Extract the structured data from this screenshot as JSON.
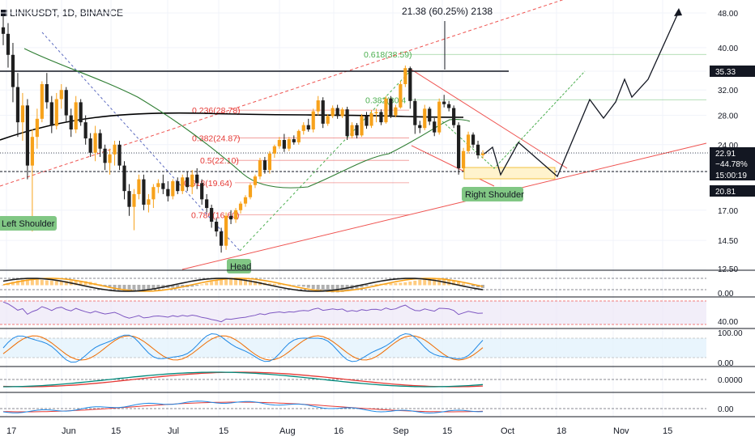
{
  "header": {
    "symbol": "LINKUSDT",
    "interval": "1D",
    "exchange": "BINANCE",
    "sep": ", "
  },
  "measure_label": "21.38 (60.25%) 2138",
  "colors": {
    "up": "#f7a21b",
    "down": "#1f1f1f",
    "fib": "#e53935",
    "green": "#4caf50",
    "ma_green": "#2e7d32",
    "ma_black": "#000000",
    "channel": "#ef5350",
    "label_fill": "#81c784"
  },
  "chart_data": {
    "type": "candlestick",
    "x_tick_labels": [
      "17",
      "Jun",
      "15",
      "Jul",
      "15",
      "Aug",
      "16",
      "Sep",
      "15",
      "Oct",
      "18",
      "Nov",
      "15"
    ],
    "y_ticks": [
      "48.00",
      "40.00",
      "35.33",
      "32.00",
      "28.00",
      "24.00",
      "22.91",
      "20.81",
      "17.00",
      "14.50",
      "12.50"
    ],
    "y_scale": "log",
    "y_range": [
      12.5,
      48.0
    ],
    "price_badges": [
      {
        "label": "35.33",
        "value": 35.33,
        "style": "dark"
      },
      {
        "label": "22.91",
        "value": 22.91,
        "style": "dark"
      },
      {
        "label": "−44.78%",
        "value": 22.91,
        "style": "dark"
      },
      {
        "label": "15:00:19",
        "value": 22.91,
        "style": "dark"
      },
      {
        "label": "20.81",
        "value": 20.81,
        "style": "dark"
      }
    ],
    "fib_levels": [
      {
        "label": "0.618(38.59)",
        "value": 38.59,
        "color": "green"
      },
      {
        "label": "0.382(30.4",
        "value": 30.4,
        "color": "green"
      },
      {
        "label": "0.236(28.78)",
        "value": 28.78,
        "color": "red"
      },
      {
        "label": "0.382(24.87)",
        "value": 24.87,
        "color": "red"
      },
      {
        "label": "0.5(22.10)",
        "value": 22.1,
        "color": "red"
      },
      {
        "label": "0.618(19.64)",
        "value": 19.64,
        "color": "red"
      },
      {
        "label": "0.786(16.60)",
        "value": 16.6,
        "color": "red"
      }
    ],
    "patterns": [
      "Left Shoulder",
      "Head",
      "Right Shoulder"
    ],
    "candles": [
      {
        "o": 44.5,
        "h": 47.5,
        "l": 40.5,
        "c": 43.0
      },
      {
        "o": 43.0,
        "h": 45.5,
        "l": 36.0,
        "c": 38.5
      },
      {
        "o": 38.5,
        "h": 41.0,
        "l": 30.0,
        "c": 32.5
      },
      {
        "o": 32.5,
        "h": 35.0,
        "l": 25.0,
        "c": 27.0
      },
      {
        "o": 27.0,
        "h": 31.5,
        "l": 24.5,
        "c": 29.5
      },
      {
        "o": 29.5,
        "h": 30.5,
        "l": 20.0,
        "c": 21.5
      },
      {
        "o": 21.5,
        "h": 26.0,
        "l": 15.2,
        "c": 25.0
      },
      {
        "o": 25.0,
        "h": 29.0,
        "l": 23.5,
        "c": 27.5
      },
      {
        "o": 27.5,
        "h": 33.5,
        "l": 27.0,
        "c": 33.0
      },
      {
        "o": 33.0,
        "h": 35.0,
        "l": 29.0,
        "c": 30.0
      },
      {
        "o": 30.0,
        "h": 31.0,
        "l": 25.5,
        "c": 26.5
      },
      {
        "o": 26.5,
        "h": 31.5,
        "l": 26.0,
        "c": 30.5
      },
      {
        "o": 30.5,
        "h": 33.0,
        "l": 29.0,
        "c": 32.0
      },
      {
        "o": 32.0,
        "h": 32.5,
        "l": 27.0,
        "c": 28.0
      },
      {
        "o": 28.0,
        "h": 29.0,
        "l": 25.0,
        "c": 26.0
      },
      {
        "o": 26.0,
        "h": 31.0,
        "l": 25.5,
        "c": 30.0
      },
      {
        "o": 30.0,
        "h": 30.5,
        "l": 26.5,
        "c": 27.0
      },
      {
        "o": 27.0,
        "h": 28.0,
        "l": 24.0,
        "c": 24.8
      },
      {
        "o": 24.8,
        "h": 25.5,
        "l": 22.5,
        "c": 23.0
      },
      {
        "o": 23.0,
        "h": 26.5,
        "l": 22.0,
        "c": 25.5
      },
      {
        "o": 25.5,
        "h": 26.0,
        "l": 22.5,
        "c": 23.5
      },
      {
        "o": 23.5,
        "h": 24.0,
        "l": 21.0,
        "c": 21.8
      },
      {
        "o": 21.8,
        "h": 23.5,
        "l": 20.5,
        "c": 22.8
      },
      {
        "o": 22.8,
        "h": 24.5,
        "l": 21.5,
        "c": 24.0
      },
      {
        "o": 24.0,
        "h": 24.5,
        "l": 21.0,
        "c": 21.5
      },
      {
        "o": 21.5,
        "h": 22.0,
        "l": 18.0,
        "c": 18.8
      },
      {
        "o": 18.8,
        "h": 19.5,
        "l": 16.5,
        "c": 17.3
      },
      {
        "o": 17.3,
        "h": 19.0,
        "l": 15.3,
        "c": 18.5
      },
      {
        "o": 18.5,
        "h": 20.5,
        "l": 18.0,
        "c": 20.0
      },
      {
        "o": 20.0,
        "h": 20.5,
        "l": 17.0,
        "c": 17.5
      },
      {
        "o": 17.5,
        "h": 18.5,
        "l": 16.8,
        "c": 18.0
      },
      {
        "o": 18.0,
        "h": 19.5,
        "l": 17.2,
        "c": 19.2
      },
      {
        "o": 19.2,
        "h": 20.0,
        "l": 18.6,
        "c": 19.6
      },
      {
        "o": 19.6,
        "h": 20.5,
        "l": 18.5,
        "c": 19.0
      },
      {
        "o": 19.0,
        "h": 19.8,
        "l": 17.8,
        "c": 18.3
      },
      {
        "o": 18.3,
        "h": 20.0,
        "l": 18.0,
        "c": 19.8
      },
      {
        "o": 19.8,
        "h": 20.2,
        "l": 18.5,
        "c": 18.8
      },
      {
        "o": 18.8,
        "h": 20.5,
        "l": 18.5,
        "c": 20.2
      },
      {
        "o": 20.2,
        "h": 20.8,
        "l": 18.8,
        "c": 19.2
      },
      {
        "o": 19.2,
        "h": 21.0,
        "l": 18.5,
        "c": 20.5
      },
      {
        "o": 20.5,
        "h": 21.2,
        "l": 19.0,
        "c": 19.6
      },
      {
        "o": 19.6,
        "h": 20.0,
        "l": 17.5,
        "c": 18.0
      },
      {
        "o": 18.0,
        "h": 18.5,
        "l": 16.8,
        "c": 17.2
      },
      {
        "o": 17.2,
        "h": 17.5,
        "l": 15.5,
        "c": 16.0
      },
      {
        "o": 16.0,
        "h": 16.3,
        "l": 14.8,
        "c": 15.2
      },
      {
        "o": 15.2,
        "h": 15.5,
        "l": 13.6,
        "c": 14.1
      },
      {
        "o": 14.1,
        "h": 16.8,
        "l": 13.8,
        "c": 16.5
      },
      {
        "o": 16.5,
        "h": 17.0,
        "l": 15.8,
        "c": 16.2
      },
      {
        "o": 16.2,
        "h": 17.2,
        "l": 15.9,
        "c": 17.0
      },
      {
        "o": 17.0,
        "h": 17.8,
        "l": 16.7,
        "c": 17.6
      },
      {
        "o": 17.6,
        "h": 18.4,
        "l": 17.3,
        "c": 18.2
      },
      {
        "o": 18.2,
        "h": 19.6,
        "l": 18.0,
        "c": 19.4
      },
      {
        "o": 19.4,
        "h": 20.5,
        "l": 19.1,
        "c": 20.3
      },
      {
        "o": 20.3,
        "h": 22.4,
        "l": 20.0,
        "c": 22.1
      },
      {
        "o": 22.1,
        "h": 22.5,
        "l": 20.6,
        "c": 21.0
      },
      {
        "o": 21.0,
        "h": 23.2,
        "l": 20.6,
        "c": 22.9
      },
      {
        "o": 22.9,
        "h": 24.0,
        "l": 22.4,
        "c": 23.8
      },
      {
        "o": 23.8,
        "h": 25.0,
        "l": 23.5,
        "c": 24.6
      },
      {
        "o": 24.6,
        "h": 25.4,
        "l": 23.1,
        "c": 23.5
      },
      {
        "o": 23.5,
        "h": 25.0,
        "l": 23.2,
        "c": 24.7
      },
      {
        "o": 24.7,
        "h": 25.2,
        "l": 24.0,
        "c": 24.3
      },
      {
        "o": 24.3,
        "h": 26.0,
        "l": 24.0,
        "c": 25.8
      },
      {
        "o": 25.8,
        "h": 27.0,
        "l": 25.3,
        "c": 26.6
      },
      {
        "o": 26.6,
        "h": 27.5,
        "l": 25.7,
        "c": 26.0
      },
      {
        "o": 26.0,
        "h": 29.0,
        "l": 25.6,
        "c": 28.6
      },
      {
        "o": 28.6,
        "h": 31.0,
        "l": 28.0,
        "c": 30.3
      },
      {
        "o": 30.3,
        "h": 30.8,
        "l": 26.2,
        "c": 26.8
      },
      {
        "o": 26.8,
        "h": 28.2,
        "l": 26.5,
        "c": 27.9
      },
      {
        "o": 27.9,
        "h": 29.5,
        "l": 27.6,
        "c": 29.1
      },
      {
        "o": 29.1,
        "h": 29.6,
        "l": 27.5,
        "c": 27.9
      },
      {
        "o": 27.9,
        "h": 29.2,
        "l": 27.6,
        "c": 28.9
      },
      {
        "o": 28.9,
        "h": 29.3,
        "l": 24.6,
        "c": 25.1
      },
      {
        "o": 25.1,
        "h": 27.0,
        "l": 24.8,
        "c": 26.6
      },
      {
        "o": 26.6,
        "h": 26.9,
        "l": 24.8,
        "c": 25.2
      },
      {
        "o": 25.2,
        "h": 28.2,
        "l": 25.0,
        "c": 27.9
      },
      {
        "o": 27.9,
        "h": 28.5,
        "l": 26.1,
        "c": 26.5
      },
      {
        "o": 26.5,
        "h": 28.8,
        "l": 26.2,
        "c": 28.3
      },
      {
        "o": 28.3,
        "h": 29.0,
        "l": 27.0,
        "c": 28.5
      },
      {
        "o": 28.5,
        "h": 28.9,
        "l": 26.6,
        "c": 27.0
      },
      {
        "o": 27.0,
        "h": 31.0,
        "l": 26.8,
        "c": 30.6
      },
      {
        "o": 30.6,
        "h": 31.0,
        "l": 27.6,
        "c": 28.0
      },
      {
        "o": 28.0,
        "h": 29.6,
        "l": 27.7,
        "c": 29.2
      },
      {
        "o": 29.2,
        "h": 33.5,
        "l": 29.0,
        "c": 33.0
      },
      {
        "o": 33.0,
        "h": 36.4,
        "l": 32.5,
        "c": 35.9
      },
      {
        "o": 35.9,
        "h": 36.2,
        "l": 29.0,
        "c": 30.2
      },
      {
        "o": 30.2,
        "h": 30.6,
        "l": 25.4,
        "c": 26.6
      },
      {
        "o": 26.6,
        "h": 27.2,
        "l": 25.5,
        "c": 26.2
      },
      {
        "o": 26.2,
        "h": 29.6,
        "l": 25.9,
        "c": 29.0
      },
      {
        "o": 29.0,
        "h": 29.3,
        "l": 26.6,
        "c": 27.1
      },
      {
        "o": 27.1,
        "h": 27.6,
        "l": 25.1,
        "c": 25.6
      },
      {
        "o": 25.6,
        "h": 30.6,
        "l": 25.3,
        "c": 30.1
      },
      {
        "o": 30.1,
        "h": 31.2,
        "l": 29.2,
        "c": 29.7
      },
      {
        "o": 29.7,
        "h": 30.2,
        "l": 28.6,
        "c": 29.1
      },
      {
        "o": 29.1,
        "h": 29.5,
        "l": 26.2,
        "c": 26.6
      },
      {
        "o": 26.6,
        "h": 27.0,
        "l": 20.5,
        "c": 21.2
      },
      {
        "o": 21.2,
        "h": 23.6,
        "l": 20.9,
        "c": 23.2
      },
      {
        "o": 23.2,
        "h": 25.7,
        "l": 22.9,
        "c": 25.3
      },
      {
        "o": 25.3,
        "h": 25.6,
        "l": 23.6,
        "c": 24.0
      },
      {
        "o": 24.0,
        "h": 24.5,
        "l": 22.3,
        "c": 22.7
      },
      {
        "o": 22.7,
        "h": 23.3,
        "l": 22.3,
        "c": 22.91
      }
    ]
  }
}
